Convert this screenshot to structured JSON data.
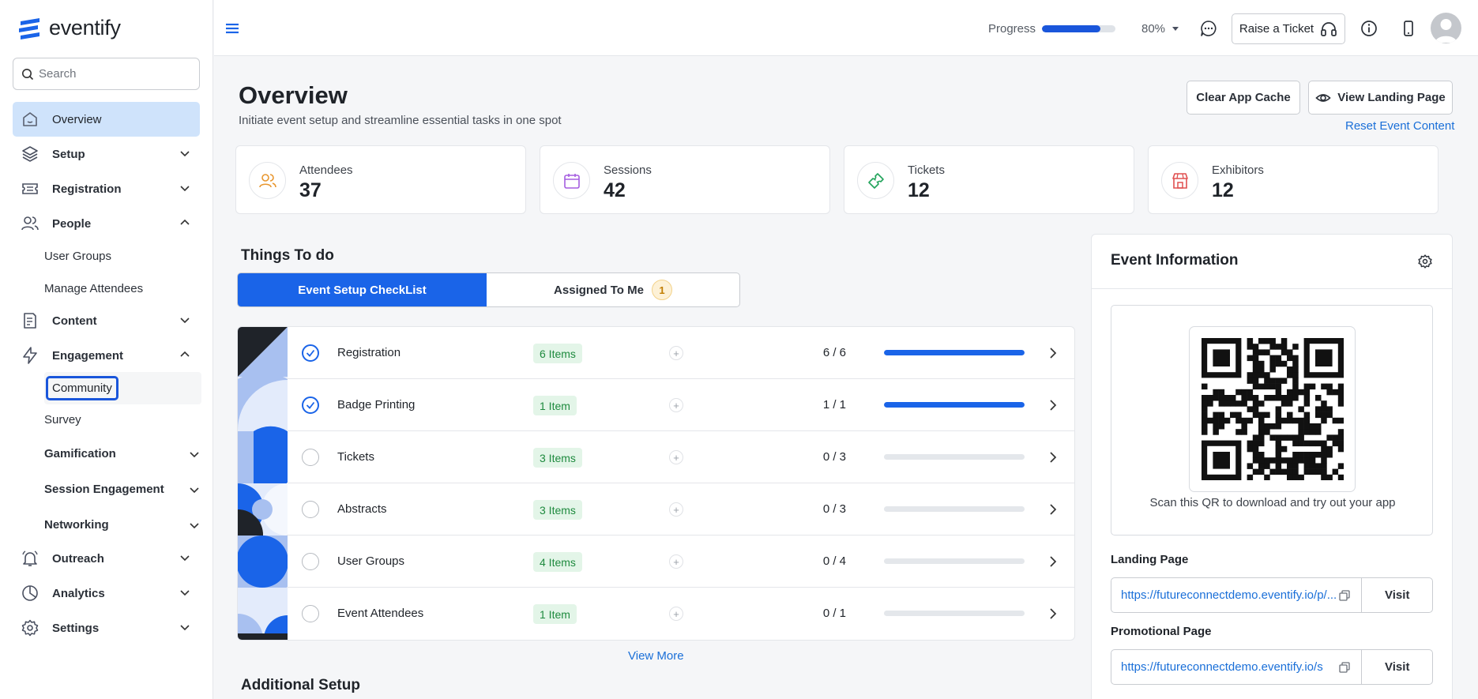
{
  "app": {
    "logo_text": "eventify"
  },
  "search": {
    "placeholder": "Search"
  },
  "sidebar": {
    "overview": "Overview",
    "setup": "Setup",
    "registration": "Registration",
    "people": "People",
    "people_sub": [
      "User Groups",
      "Manage Attendees"
    ],
    "content": "Content",
    "engagement": "Engagement",
    "community": "Community",
    "survey": "Survey",
    "gamification": "Gamification",
    "session_engagement": "Session Engagement",
    "networking": "Networking",
    "outreach": "Outreach",
    "analytics": "Analytics",
    "settings": "Settings"
  },
  "header": {
    "progress_label": "Progress",
    "progress_value": 0.8,
    "progress_pct": "80%",
    "raise_ticket": "Raise a Ticket"
  },
  "overview": {
    "title": "Overview",
    "subtitle": "Initiate event setup and streamline essential tasks in one spot",
    "clear_cache": "Clear App Cache",
    "view_landing": "View Landing Page",
    "reset_content": "Reset Event Content"
  },
  "stats": [
    {
      "label": "Attendees",
      "value": "37",
      "color": "#e8962e"
    },
    {
      "label": "Sessions",
      "value": "42",
      "color": "#a55ee0"
    },
    {
      "label": "Tickets",
      "value": "12",
      "color": "#20a35a"
    },
    {
      "label": "Exhibitors",
      "value": "12",
      "color": "#e05050"
    }
  ],
  "todo": {
    "title": "Things To do",
    "tab_checklist": "Event Setup CheckList",
    "tab_assigned": "Assigned To Me",
    "assigned_count": "1",
    "rows": [
      {
        "name": "Registration",
        "items": "6 Items",
        "ratio": "6 / 6",
        "progress": 1,
        "done": true
      },
      {
        "name": "Badge Printing",
        "items": "1 Item",
        "ratio": "1 / 1",
        "progress": 1,
        "done": true
      },
      {
        "name": "Tickets",
        "items": "3 Items",
        "ratio": "0 / 3",
        "progress": 0,
        "done": false
      },
      {
        "name": "Abstracts",
        "items": "3 Items",
        "ratio": "0 / 3",
        "progress": 0,
        "done": false
      },
      {
        "name": "User Groups",
        "items": "4 Items",
        "ratio": "0 / 4",
        "progress": 0,
        "done": false
      },
      {
        "name": "Event Attendees",
        "items": "1 Item",
        "ratio": "0 / 1",
        "progress": 0,
        "done": false
      }
    ],
    "view_more": "View More",
    "additional_setup": "Additional Setup"
  },
  "event_info": {
    "title": "Event Information",
    "qr_caption": "Scan this QR to download and try out your app",
    "landing_label": "Landing Page",
    "landing_url": "https://futureconnectdemo.eventify.io/p/...",
    "promo_label": "Promotional Page",
    "promo_url": "https://futureconnectdemo.eventify.io/s",
    "visit": "Visit"
  },
  "colors": {
    "accent": "#1a64e8",
    "active_nav": "#cfe3fb"
  }
}
